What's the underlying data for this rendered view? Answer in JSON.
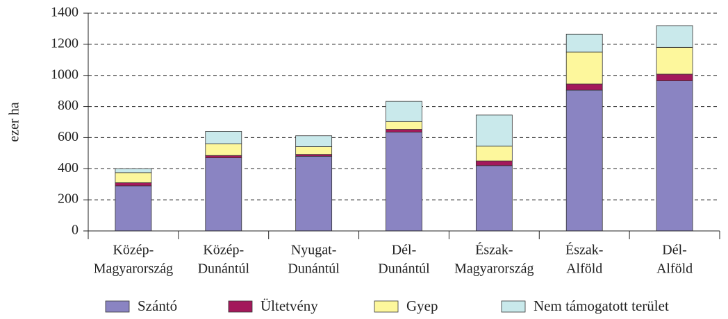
{
  "chart_data": {
    "type": "stacked_bar",
    "y_label": "ezer ha",
    "categories": [
      [
        "Közép-",
        "Magyarország"
      ],
      [
        "Közép-",
        "Dunántúl"
      ],
      [
        "Nyugat-",
        "Dunántúl"
      ],
      [
        "Dél-",
        "Dunántúl"
      ],
      [
        "Észak-",
        "Magyarország"
      ],
      [
        "Észak-",
        "Alföld"
      ],
      [
        "Dél-",
        "Alföld"
      ]
    ],
    "series": [
      {
        "name": "Szántó",
        "color": "#8a84c2",
        "values": [
          290,
          470,
          480,
          635,
          420,
          905,
          965
        ]
      },
      {
        "name": "Ültetvény",
        "color": "#a3195b",
        "values": [
          20,
          15,
          12,
          18,
          30,
          40,
          43
        ]
      },
      {
        "name": "Gyep",
        "color": "#fdf79c",
        "values": [
          65,
          75,
          50,
          50,
          95,
          205,
          172
        ]
      },
      {
        "name": "Nem támogatott terület",
        "color": "#c9e9eb",
        "values": [
          25,
          80,
          70,
          130,
          200,
          115,
          140
        ]
      }
    ],
    "ylim": [
      0,
      1400
    ],
    "yticks": [
      0,
      200,
      400,
      600,
      800,
      1000,
      1200,
      1400
    ],
    "grid": true
  }
}
